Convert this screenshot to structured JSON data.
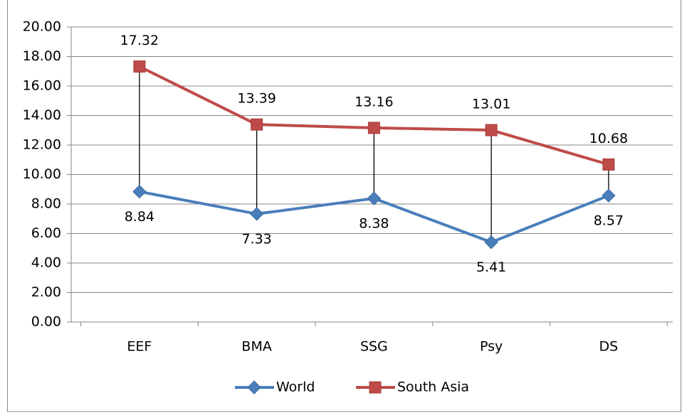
{
  "chart_data": {
    "type": "line",
    "categories": [
      "EEF",
      "BMA",
      "SSG",
      "Psy",
      "DS"
    ],
    "series": [
      {
        "name": "World",
        "color": "#4a7ebb",
        "marker": "diamond",
        "values": [
          8.84,
          7.33,
          8.38,
          5.41,
          8.57
        ]
      },
      {
        "name": "South Asia",
        "color": "#be4b48",
        "marker": "square",
        "values": [
          17.32,
          13.39,
          13.16,
          13.01,
          10.68
        ]
      }
    ],
    "ylim": [
      0,
      20
    ],
    "yticks": [
      {
        "value": 0,
        "label": "0.00"
      },
      {
        "value": 2,
        "label": "2.00"
      },
      {
        "value": 4,
        "label": "4.00"
      },
      {
        "value": 6,
        "label": "6.00"
      },
      {
        "value": 8,
        "label": "8.00"
      },
      {
        "value": 10,
        "label": "10.00"
      },
      {
        "value": 12,
        "label": "12.00"
      },
      {
        "value": 14,
        "label": "14.00"
      },
      {
        "value": 16,
        "label": "16.00"
      },
      {
        "value": 18,
        "label": "18.00"
      },
      {
        "value": 20,
        "label": "20.00"
      }
    ],
    "grid": true,
    "high_low_lines": true,
    "legend": "bottom"
  }
}
